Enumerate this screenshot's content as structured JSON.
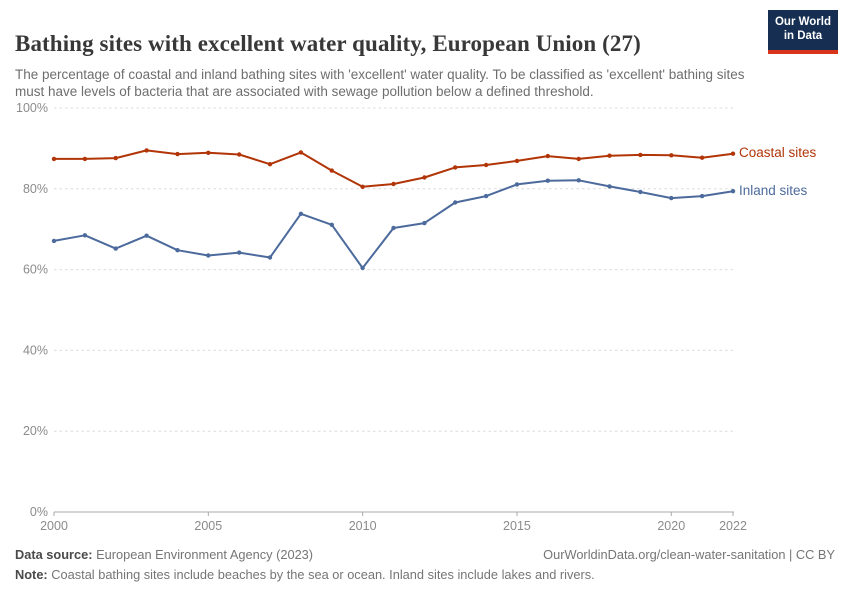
{
  "header": {
    "title": "Bathing sites with excellent water quality, European Union (27)",
    "subtitle": "The percentage of coastal and inland bathing sites with 'excellent' water quality. To be classified as 'excellent' bathing sites must have levels of bacteria that are associated with sewage pollution below a defined threshold."
  },
  "logo": {
    "line1": "Our World",
    "line2": "in Data",
    "bg_color": "#152e52",
    "accent_color": "#d8341c"
  },
  "chart_data": {
    "type": "line",
    "title": "Bathing sites with excellent water quality, European Union (27)",
    "x": [
      2000,
      2001,
      2002,
      2003,
      2004,
      2005,
      2006,
      2007,
      2008,
      2009,
      2010,
      2011,
      2012,
      2013,
      2014,
      2015,
      2016,
      2017,
      2018,
      2019,
      2020,
      2021,
      2022
    ],
    "series": [
      {
        "name": "Coastal sites",
        "color": "#b13507",
        "values": [
          87.4,
          87.4,
          87.6,
          89.5,
          88.6,
          88.9,
          88.5,
          86.1,
          89.0,
          84.5,
          80.5,
          81.2,
          82.8,
          85.3,
          85.9,
          86.9,
          88.1,
          87.4,
          88.2,
          88.4,
          88.3,
          87.7,
          88.7
        ]
      },
      {
        "name": "Inland sites",
        "color": "#4c6a9c",
        "values": [
          67.1,
          68.5,
          65.2,
          68.4,
          64.8,
          63.5,
          64.2,
          63.0,
          73.8,
          71.1,
          60.4,
          70.3,
          71.5,
          76.6,
          78.2,
          81.1,
          82.0,
          82.1,
          80.6,
          79.2,
          77.7,
          78.2,
          79.4
        ]
      }
    ],
    "xlabel": "",
    "ylabel": "",
    "xlim": [
      2000,
      2022
    ],
    "ylim": [
      0,
      100
    ],
    "yticks": [
      0,
      20,
      40,
      60,
      80,
      100
    ],
    "ytick_labels": [
      "0%",
      "20%",
      "40%",
      "60%",
      "80%",
      "100%"
    ],
    "xticks": [
      2000,
      2005,
      2010,
      2015,
      2020,
      2022
    ],
    "xtick_labels": [
      "2000",
      "2005",
      "2010",
      "2015",
      "2020",
      "2022"
    ],
    "grid": "horizontal-dashed",
    "legend_position": "right-of-line-end",
    "grid_color": "#dcdcdc",
    "axis_color": "#a8a8a8",
    "tick_label_color": "#8b8b8b"
  },
  "footer": {
    "source_label": "Data source:",
    "source_value": " European Environment Agency (2023)",
    "link": "OurWorldinData.org/clean-water-sanitation",
    "separator": " | ",
    "license": "CC BY",
    "note_label": "Note:",
    "note_value": " Coastal bathing sites include beaches by the sea or ocean. Inland sites include lakes and rivers."
  }
}
